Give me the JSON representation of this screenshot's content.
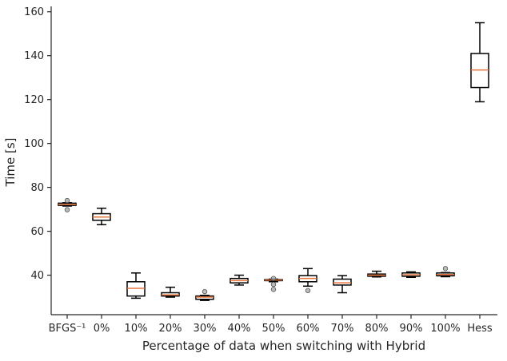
{
  "chart_data": {
    "type": "box",
    "title": "",
    "xlabel": "Percentage of data when switching with Hybrid",
    "ylabel": "Time [s]",
    "ylim": [
      22,
      161
    ],
    "yticks": [
      40,
      60,
      80,
      100,
      120,
      140,
      160
    ],
    "grid": false,
    "categories": [
      "BFGS⁻¹",
      "0%",
      "10%",
      "20%",
      "30%",
      "40%",
      "50%",
      "60%",
      "70%",
      "80%",
      "90%",
      "100%",
      "Hess"
    ],
    "boxes": [
      {
        "whislo": 71.5,
        "q1": 71.8,
        "med": 72.2,
        "q3": 72.8,
        "whishi": 73.0,
        "fliers": [
          74.0,
          69.8
        ]
      },
      {
        "whislo": 63.0,
        "q1": 65.0,
        "med": 66.5,
        "q3": 68.0,
        "whishi": 70.5,
        "fliers": []
      },
      {
        "whislo": 29.5,
        "q1": 30.5,
        "med": 34.0,
        "q3": 37.0,
        "whishi": 41.0,
        "fliers": []
      },
      {
        "whislo": 30.0,
        "q1": 30.5,
        "med": 31.0,
        "q3": 32.0,
        "whishi": 34.5,
        "fliers": []
      },
      {
        "whislo": 28.5,
        "q1": 29.0,
        "med": 30.0,
        "q3": 30.5,
        "whishi": 30.8,
        "fliers": [
          32.5
        ]
      },
      {
        "whislo": 35.5,
        "q1": 36.5,
        "med": 37.5,
        "q3": 38.5,
        "whishi": 40.0,
        "fliers": []
      },
      {
        "whislo": 37.0,
        "q1": 37.5,
        "med": 37.8,
        "q3": 38.0,
        "whishi": 38.2,
        "fliers": [
          38.5,
          35.8,
          33.5
        ]
      },
      {
        "whislo": 35.0,
        "q1": 37.0,
        "med": 38.5,
        "q3": 39.8,
        "whishi": 43.0,
        "fliers": [
          33.0
        ]
      },
      {
        "whislo": 32.0,
        "q1": 35.5,
        "med": 36.5,
        "q3": 38.2,
        "whishi": 39.8,
        "fliers": []
      },
      {
        "whislo": 39.2,
        "q1": 39.5,
        "med": 40.0,
        "q3": 40.5,
        "whishi": 41.8,
        "fliers": []
      },
      {
        "whislo": 39.0,
        "q1": 39.5,
        "med": 40.2,
        "q3": 41.0,
        "whishi": 41.5,
        "fliers": []
      },
      {
        "whislo": 39.3,
        "q1": 39.7,
        "med": 40.3,
        "q3": 41.0,
        "whishi": 41.2,
        "fliers": [
          43.0
        ]
      },
      {
        "whislo": 119.0,
        "q1": 125.5,
        "med": 133.5,
        "q3": 141.0,
        "whishi": 155.0,
        "fliers": []
      }
    ],
    "colors": {
      "box": "#000000",
      "median": "#e8743b",
      "flier_fill": "#9e9e9e",
      "flier_edge": "#555555",
      "axis": "#262626"
    }
  }
}
